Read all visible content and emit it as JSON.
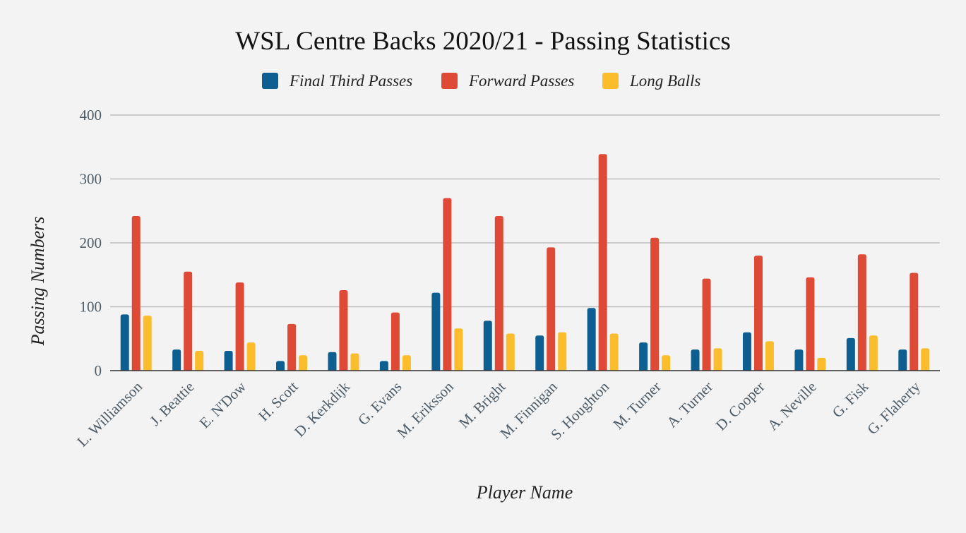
{
  "chart_data": {
    "type": "bar",
    "title": "WSL Centre Backs 2020/21 - Passing Statistics",
    "xlabel": "Player Name",
    "ylabel": "Passing Numbers",
    "ylim": [
      0,
      400
    ],
    "yticks": [
      0,
      100,
      200,
      300,
      400
    ],
    "grid": true,
    "legend_position": "top",
    "categories": [
      "L. Williamson",
      "J. Beattie",
      "E. N'Dow",
      "H. Scott",
      "D. Kerkdijk",
      "G. Evans",
      "M. Eriksson",
      "M. Bright",
      "M. Finnigan",
      "S. Houghton",
      "M. Turner",
      "A. Turner",
      "D. Cooper",
      "A. Neville",
      "G. Fisk",
      "G. Flaherty"
    ],
    "series": [
      {
        "name": "Final Third Passes",
        "color": "#0d5f91",
        "values": [
          88,
          33,
          31,
          15,
          29,
          15,
          122,
          78,
          55,
          98,
          44,
          33,
          60,
          33,
          51,
          33
        ]
      },
      {
        "name": "Forward Passes",
        "color": "#df4a37",
        "values": [
          242,
          155,
          138,
          73,
          126,
          91,
          270,
          242,
          193,
          339,
          208,
          144,
          180,
          146,
          182,
          153
        ]
      },
      {
        "name": "Long Balls",
        "color": "#fbbd2b",
        "values": [
          86,
          31,
          44,
          24,
          27,
          24,
          66,
          58,
          60,
          58,
          24,
          35,
          46,
          20,
          55,
          35
        ]
      }
    ]
  }
}
